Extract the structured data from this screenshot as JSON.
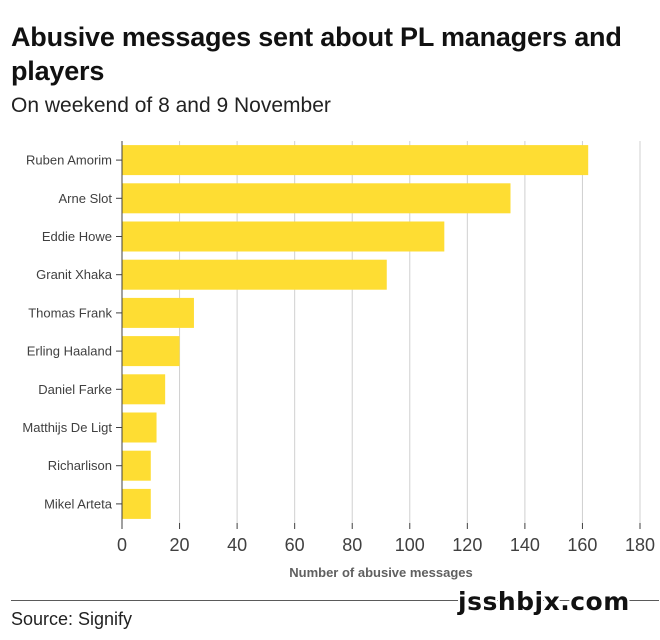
{
  "header": {
    "title": "Abusive messages sent about PL managers and players",
    "subtitle": "On weekend of 8 and 9 November"
  },
  "footer": {
    "source": "Source: Signify",
    "watermark": "jsshbjx.com"
  },
  "colors": {
    "bar": "#fedd33",
    "grid": "#d0d0d0",
    "axis": "#404040"
  },
  "chart_data": {
    "type": "bar",
    "orientation": "horizontal",
    "title": "Abusive messages sent about PL managers and players",
    "subtitle": "On weekend of 8 and 9 November",
    "xlabel": "Number of abusive messages",
    "ylabel": "",
    "xlim": [
      0,
      180
    ],
    "xticks": [
      0,
      20,
      40,
      60,
      80,
      100,
      120,
      140,
      160,
      180
    ],
    "grid": "vertical",
    "legend": "none",
    "categories": [
      "Ruben Amorim",
      "Arne Slot",
      "Eddie Howe",
      "Granit Xhaka",
      "Thomas Frank",
      "Erling Haaland",
      "Daniel Farke",
      "Matthijs De Ligt",
      "Richarlison",
      "Mikel Arteta"
    ],
    "values": [
      162,
      135,
      112,
      92,
      25,
      20,
      15,
      12,
      10,
      10
    ]
  }
}
